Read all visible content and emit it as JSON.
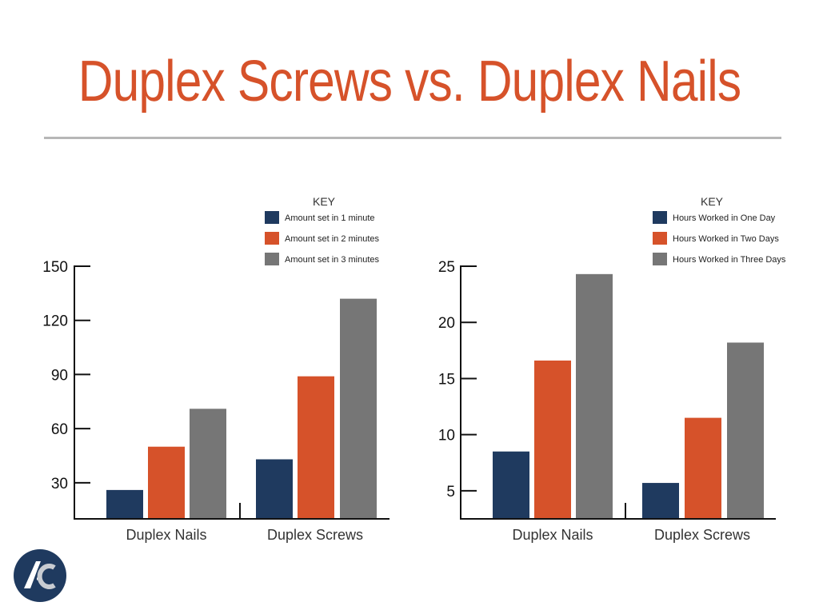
{
  "slide": {
    "title": "Duplex Screws vs. Duplex Nails"
  },
  "colors": {
    "title": "#d6522a",
    "series": [
      "#1f3a5f",
      "#d6522a",
      "#767676"
    ],
    "rule": "#b7b7b7"
  },
  "logo": {
    "text": "AC"
  },
  "chart_data": [
    {
      "type": "bar",
      "categories": [
        "Duplex Nails",
        "Duplex Screws"
      ],
      "series": [
        {
          "name": "Amount set in 1 minute",
          "values": [
            26,
            43
          ]
        },
        {
          "name": "Amount set in 2 minutes",
          "values": [
            50,
            89
          ]
        },
        {
          "name": "Amount set in 3 minutes",
          "values": [
            71,
            132
          ]
        }
      ],
      "ylim": [
        10,
        150
      ],
      "yticks": [
        30,
        60,
        90,
        120,
        150
      ],
      "legend_title": "KEY",
      "legend_position": "top-right",
      "grid": false
    },
    {
      "type": "bar",
      "categories": [
        "Duplex Nails",
        "Duplex Screws"
      ],
      "series": [
        {
          "name": "Hours Worked in One Day",
          "values": [
            8.5,
            5.7
          ]
        },
        {
          "name": "Hours Worked in Two Days",
          "values": [
            16.6,
            11.5
          ]
        },
        {
          "name": "Hours Worked in Three Days",
          "values": [
            24.3,
            18.2
          ]
        }
      ],
      "ylim": [
        2.5,
        25
      ],
      "yticks": [
        5,
        10,
        15,
        20,
        25
      ],
      "legend_title": "KEY",
      "legend_position": "top-right",
      "grid": false
    }
  ]
}
